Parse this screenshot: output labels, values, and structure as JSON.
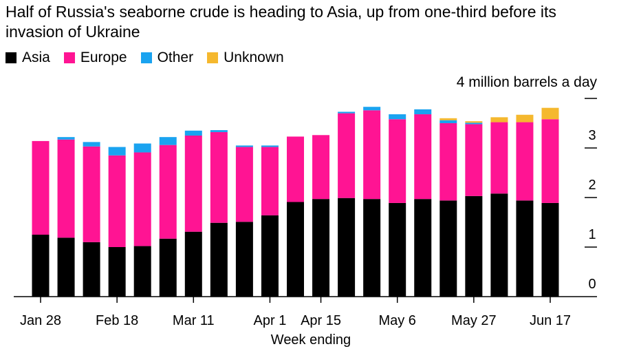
{
  "chart_data": {
    "type": "bar",
    "stacked": true,
    "title": "Half of Russia's seaborne crude is heading to Asia, up from one-third before its invasion of Ukraine",
    "xlabel": "Week ending",
    "ylabel": "4 million barrels a day",
    "ylim": [
      0,
      4
    ],
    "yticks": [
      0,
      1,
      2,
      3
    ],
    "xtick_labels": [
      "Jan 28",
      "Feb 18",
      "Mar 11",
      "Apr 1",
      "Apr 15",
      "May 6",
      "May 27",
      "Jun 17"
    ],
    "xtick_label_bars": [
      0,
      3,
      6,
      9,
      11,
      14,
      17,
      20
    ],
    "categories": [
      "Jan 28",
      "Feb 4",
      "Feb 11",
      "Feb 18",
      "Feb 25",
      "Mar 4",
      "Mar 11",
      "Mar 18",
      "Mar 25",
      "Apr 1",
      "Apr 8",
      "Apr 15",
      "Apr 22",
      "Apr 29",
      "May 6",
      "May 13",
      "May 20",
      "May 27",
      "Jun 3",
      "Jun 10",
      "Jun 17"
    ],
    "series": [
      {
        "name": "Asia",
        "color": "#000000",
        "values": [
          1.25,
          1.19,
          1.1,
          1.0,
          1.02,
          1.17,
          1.31,
          1.49,
          1.51,
          1.64,
          1.91,
          1.97,
          1.99,
          1.97,
          1.89,
          1.97,
          1.94,
          2.03,
          2.08,
          1.94,
          1.89
        ]
      },
      {
        "name": "Europe",
        "color": "#ff1493",
        "values": [
          1.89,
          1.98,
          1.93,
          1.85,
          1.89,
          1.89,
          1.94,
          1.83,
          1.51,
          1.38,
          1.32,
          1.29,
          1.71,
          1.79,
          1.69,
          1.71,
          1.56,
          1.45,
          1.44,
          1.58,
          1.69
        ]
      },
      {
        "name": "Other",
        "color": "#1aa3f0",
        "values": [
          0.0,
          0.05,
          0.09,
          0.17,
          0.18,
          0.16,
          0.1,
          0.04,
          0.03,
          0.03,
          0.0,
          0.0,
          0.03,
          0.07,
          0.1,
          0.1,
          0.06,
          0.03,
          0.0,
          0.0,
          0.0
        ]
      },
      {
        "name": "Unknown",
        "color": "#f5b82e",
        "values": [
          0.0,
          0.0,
          0.0,
          0.0,
          0.0,
          0.0,
          0.0,
          0.0,
          0.0,
          0.0,
          0.0,
          0.0,
          0.0,
          0.0,
          0.0,
          0.0,
          0.04,
          0.03,
          0.1,
          0.15,
          0.23
        ]
      }
    ]
  }
}
